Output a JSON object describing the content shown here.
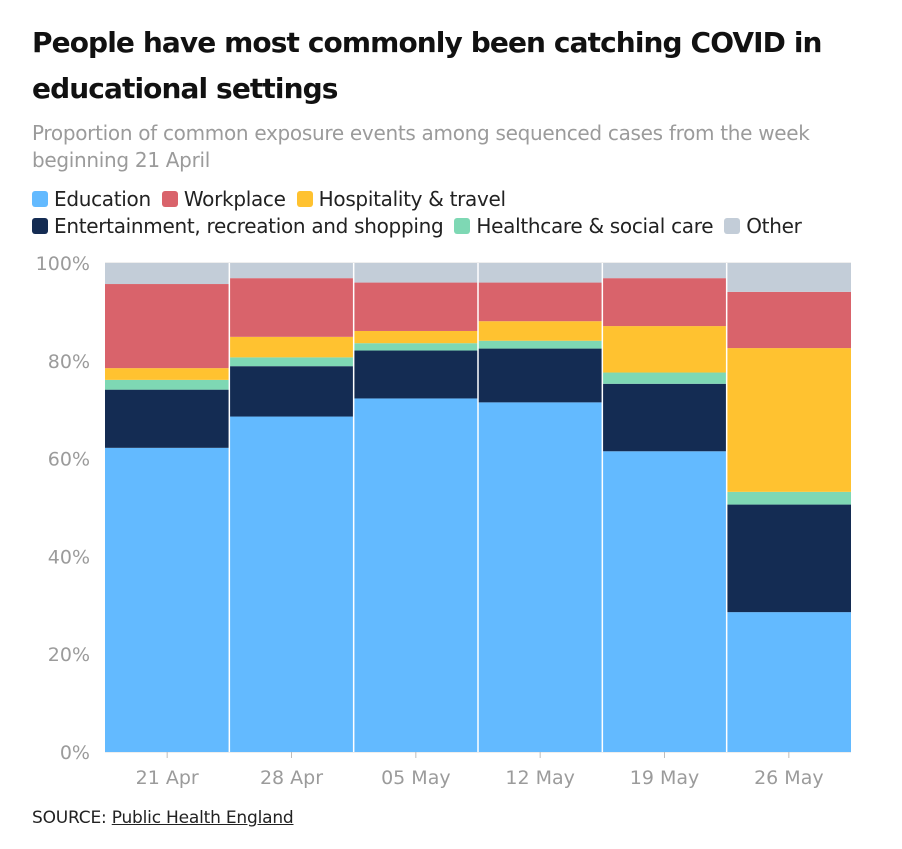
{
  "title": "People have most commonly been catching COVID in educational settings",
  "subtitle": "Proportion of common exposure events among sequenced cases from the week beginning 21 April",
  "legend": {
    "row1": [
      {
        "label": "Education",
        "color": "#63baff"
      },
      {
        "label": "Workplace",
        "color": "#d9636b"
      },
      {
        "label": "Hospitality & travel",
        "color": "#ffc230"
      }
    ],
    "row2": [
      {
        "label": "Entertainment, recreation and shopping",
        "color": "#142c53"
      },
      {
        "label": "Healthcare & social care",
        "color": "#7ed8b4"
      },
      {
        "label": "Other",
        "color": "#c3cdd8"
      }
    ]
  },
  "source": {
    "prefix": "SOURCE: ",
    "link_text": "Public Health England"
  },
  "chart_data": {
    "type": "bar",
    "stacked": true,
    "categories": [
      "21 Apr",
      "28 Apr",
      "05 May",
      "12 May",
      "19 May",
      "26 May"
    ],
    "series": [
      {
        "name": "Education",
        "color": "#63baff",
        "values": [
          62.2,
          68.6,
          72.3,
          71.5,
          61.5,
          28.6
        ]
      },
      {
        "name": "Entertainment, recreation and shopping",
        "color": "#142c53",
        "values": [
          11.9,
          10.3,
          9.8,
          11.0,
          13.8,
          22.0
        ]
      },
      {
        "name": "Healthcare & social care",
        "color": "#7ed8b4",
        "values": [
          2.0,
          1.8,
          1.5,
          1.6,
          2.3,
          2.6
        ]
      },
      {
        "name": "Hospitality & travel",
        "color": "#ffc230",
        "values": [
          2.4,
          4.2,
          2.5,
          4.0,
          9.5,
          29.4
        ]
      },
      {
        "name": "Workplace",
        "color": "#d9636b",
        "values": [
          17.2,
          12.0,
          9.9,
          7.9,
          9.8,
          11.5
        ]
      },
      {
        "name": "Other",
        "color": "#c3cdd8",
        "values": [
          4.3,
          3.1,
          4.0,
          4.0,
          3.1,
          5.9
        ]
      }
    ],
    "y_ticks": [
      "0%",
      "20%",
      "40%",
      "60%",
      "80%",
      "100%"
    ],
    "ylim": [
      0,
      100
    ],
    "grid": true,
    "legend_position": "top"
  }
}
